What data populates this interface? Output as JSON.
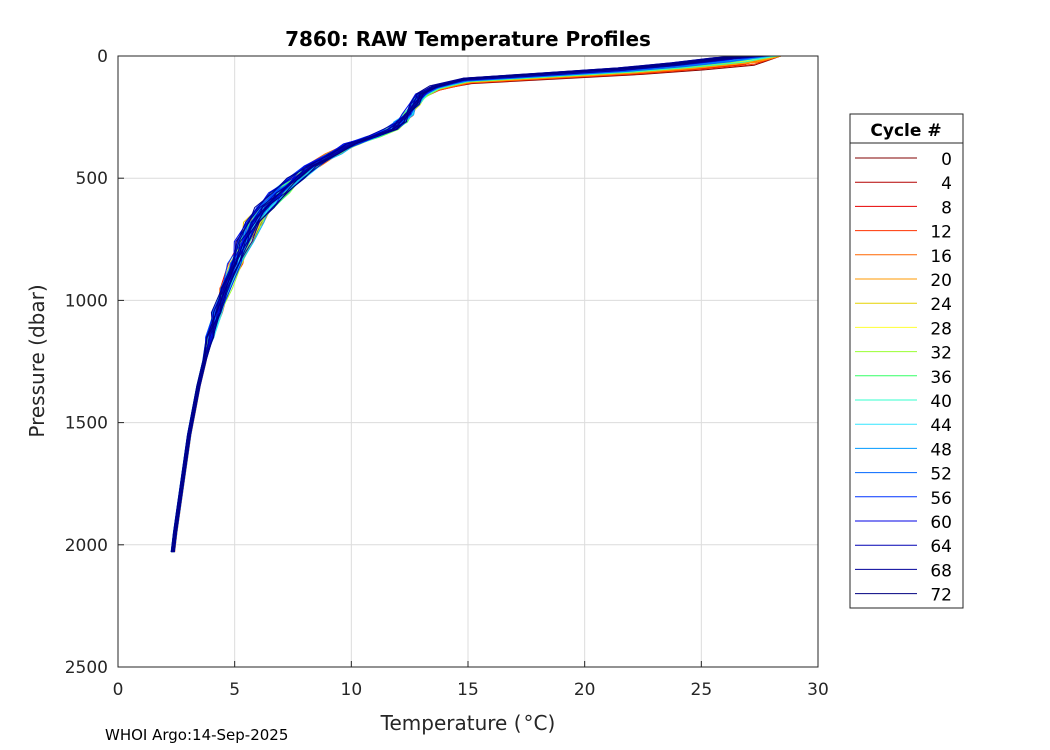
{
  "chart_data": {
    "type": "line",
    "title": "7860: RAW Temperature Profiles",
    "xlabel": "Temperature (",
    "xlabel_unit": "°C)",
    "ylabel": "Pressure (dbar)",
    "xlim": [
      0,
      30
    ],
    "ylim": [
      0,
      2500
    ],
    "y_reversed": true,
    "grid": true,
    "xticks": [
      0,
      5,
      10,
      15,
      20,
      25,
      30
    ],
    "yticks": [
      0,
      500,
      1000,
      1500,
      2000,
      2500
    ],
    "legend": {
      "title": "Cycle #",
      "placement": "right",
      "entries": [
        {
          "label": "0",
          "color": "#800000"
        },
        {
          "label": "4",
          "color": "#b30000"
        },
        {
          "label": "8",
          "color": "#e60000"
        },
        {
          "label": "12",
          "color": "#ff3300"
        },
        {
          "label": "16",
          "color": "#ff6600"
        },
        {
          "label": "20",
          "color": "#ff9900"
        },
        {
          "label": "24",
          "color": "#e6d200"
        },
        {
          "label": "28",
          "color": "#ffff33"
        },
        {
          "label": "32",
          "color": "#99ff33"
        },
        {
          "label": "36",
          "color": "#33ff66"
        },
        {
          "label": "40",
          "color": "#33ffcc"
        },
        {
          "label": "44",
          "color": "#33e6ff"
        },
        {
          "label": "48",
          "color": "#0099ff"
        },
        {
          "label": "52",
          "color": "#0066ff"
        },
        {
          "label": "56",
          "color": "#0033ff"
        },
        {
          "label": "60",
          "color": "#0000e6"
        },
        {
          "label": "64",
          "color": "#0000b3"
        },
        {
          "label": "68",
          "color": "#000099"
        },
        {
          "label": "72",
          "color": "#000080"
        }
      ]
    },
    "base_profile": {
      "pressure": [
        0,
        20,
        40,
        60,
        80,
        100,
        130,
        160,
        200,
        240,
        270,
        300,
        330,
        360,
        400,
        450,
        500,
        560,
        620,
        680,
        760,
        850,
        950,
        1050,
        1150,
        1250,
        1350,
        1450,
        1550,
        1650,
        1750,
        1850,
        1950,
        2030
      ],
      "temperature": [
        27.8,
        26.5,
        24.5,
        22.0,
        18.5,
        15.0,
        13.6,
        13.0,
        12.7,
        12.4,
        12.1,
        11.7,
        10.9,
        10.0,
        9.2,
        8.3,
        7.6,
        6.9,
        6.3,
        5.8,
        5.4,
        5.0,
        4.6,
        4.25,
        3.95,
        3.7,
        3.45,
        3.25,
        3.05,
        2.9,
        2.75,
        2.6,
        2.45,
        2.35
      ]
    },
    "series_note": "73 profiles (cycles 0-72) following base_profile with small per-cycle offsets; colour coded by cycle from dark red (early) to dark blue (late)"
  },
  "credit": "WHOI Argo:14-Sep-2025"
}
